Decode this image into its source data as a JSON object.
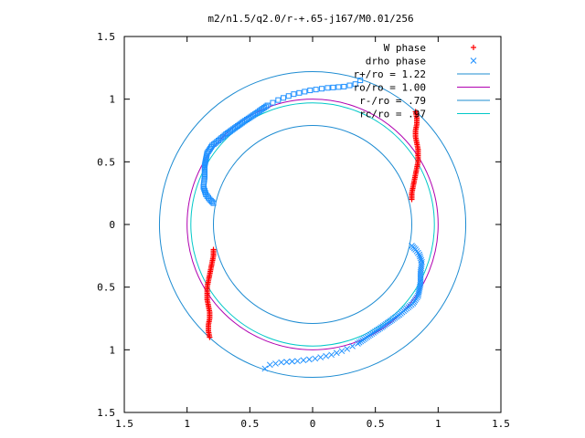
{
  "chart_data": {
    "type": "scatter",
    "title": "m2/n1.5/q2.0/r-+.65-j167/M0.01/256",
    "xlabel": "",
    "ylabel": "",
    "xlim": [
      -1.5,
      1.5
    ],
    "ylim": [
      -1.5,
      1.5
    ],
    "x_ticks": [
      "1.5",
      "1",
      "0.5",
      "0",
      "0.5",
      "1",
      "1.5"
    ],
    "y_ticks": [
      "1.5",
      "1",
      "0.5",
      "0",
      "0.5",
      "1",
      "1.5"
    ],
    "grid": false,
    "legend_position": "top-right",
    "legend": [
      {
        "label": "W phase",
        "kind": "points",
        "marker": "plus",
        "color": "#ff0000"
      },
      {
        "label": "drho phase",
        "kind": "points",
        "marker": "cross",
        "color": "#1e90ff"
      },
      {
        "label": "r+/ro = 1.22",
        "kind": "line",
        "color": "#1e8cd2"
      },
      {
        "label": "ro/ro = 1.00",
        "kind": "line",
        "color": "#b000b0"
      },
      {
        "label": "r-/ro = .79",
        "kind": "line",
        "color": "#1e8cd2"
      },
      {
        "label": "rc/ro = .97",
        "kind": "line",
        "color": "#00c8c8"
      }
    ],
    "circles": [
      {
        "name": "r+/ro = 1.22",
        "r": 1.22,
        "color": "#1e8cd2"
      },
      {
        "name": "ro/ro = 1.00",
        "r": 1.0,
        "color": "#b000b0"
      },
      {
        "name": "r-/ro = .79",
        "r": 0.79,
        "color": "#1e8cd2"
      },
      {
        "name": "rc/ro = .97",
        "r": 0.97,
        "color": "#00c8c8"
      }
    ],
    "series": [
      {
        "name": "W phase",
        "marker": "plus",
        "color": "#ff0000",
        "arcs": [
          {
            "points": [
              [
                0.79,
                0.2
              ],
              [
                0.79,
                0.25
              ],
              [
                0.8,
                0.3
              ],
              [
                0.81,
                0.35
              ],
              [
                0.82,
                0.4
              ],
              [
                0.83,
                0.45
              ],
              [
                0.84,
                0.5
              ],
              [
                0.84,
                0.55
              ],
              [
                0.84,
                0.6
              ],
              [
                0.83,
                0.65
              ],
              [
                0.82,
                0.7
              ],
              [
                0.82,
                0.75
              ],
              [
                0.83,
                0.8
              ],
              [
                0.83,
                0.85
              ],
              [
                0.82,
                0.9
              ]
            ]
          },
          {
            "points": [
              [
                -0.79,
                -0.2
              ],
              [
                -0.79,
                -0.25
              ],
              [
                -0.8,
                -0.3
              ],
              [
                -0.81,
                -0.35
              ],
              [
                -0.82,
                -0.4
              ],
              [
                -0.83,
                -0.45
              ],
              [
                -0.84,
                -0.5
              ],
              [
                -0.84,
                -0.55
              ],
              [
                -0.84,
                -0.6
              ],
              [
                -0.83,
                -0.65
              ],
              [
                -0.82,
                -0.7
              ],
              [
                -0.82,
                -0.75
              ],
              [
                -0.83,
                -0.8
              ],
              [
                -0.83,
                -0.85
              ],
              [
                -0.82,
                -0.9
              ]
            ]
          }
        ]
      },
      {
        "name": "drho phase",
        "marker": "mixed",
        "color": "#1e90ff",
        "arcs": [
          {
            "points": [
              [
                -0.79,
                0.17
              ],
              [
                -0.82,
                0.2
              ],
              [
                -0.85,
                0.24
              ],
              [
                -0.87,
                0.3
              ],
              [
                -0.86,
                0.38
              ],
              [
                -0.86,
                0.47
              ],
              [
                -0.84,
                0.57
              ],
              [
                -0.8,
                0.63
              ],
              [
                -0.75,
                0.67
              ],
              [
                -0.69,
                0.72
              ],
              [
                -0.62,
                0.77
              ],
              [
                -0.55,
                0.82
              ],
              [
                -0.46,
                0.88
              ],
              [
                -0.36,
                0.95
              ],
              [
                -0.26,
                1.0
              ],
              [
                -0.15,
                1.04
              ],
              [
                -0.02,
                1.07
              ],
              [
                0.12,
                1.09
              ],
              [
                0.25,
                1.1
              ],
              [
                0.34,
                1.12
              ],
              [
                0.38,
                1.15
              ]
            ]
          },
          {
            "points": [
              [
                0.79,
                -0.17
              ],
              [
                0.82,
                -0.2
              ],
              [
                0.85,
                -0.24
              ],
              [
                0.87,
                -0.3
              ],
              [
                0.86,
                -0.38
              ],
              [
                0.86,
                -0.47
              ],
              [
                0.84,
                -0.57
              ],
              [
                0.8,
                -0.63
              ],
              [
                0.75,
                -0.67
              ],
              [
                0.69,
                -0.72
              ],
              [
                0.62,
                -0.77
              ],
              [
                0.55,
                -0.82
              ],
              [
                0.46,
                -0.88
              ],
              [
                0.36,
                -0.95
              ],
              [
                0.26,
                -1.0
              ],
              [
                0.15,
                -1.04
              ],
              [
                0.02,
                -1.07
              ],
              [
                -0.12,
                -1.09
              ],
              [
                -0.25,
                -1.1
              ],
              [
                -0.34,
                -1.12
              ],
              [
                -0.38,
                -1.15
              ]
            ]
          }
        ]
      }
    ]
  }
}
